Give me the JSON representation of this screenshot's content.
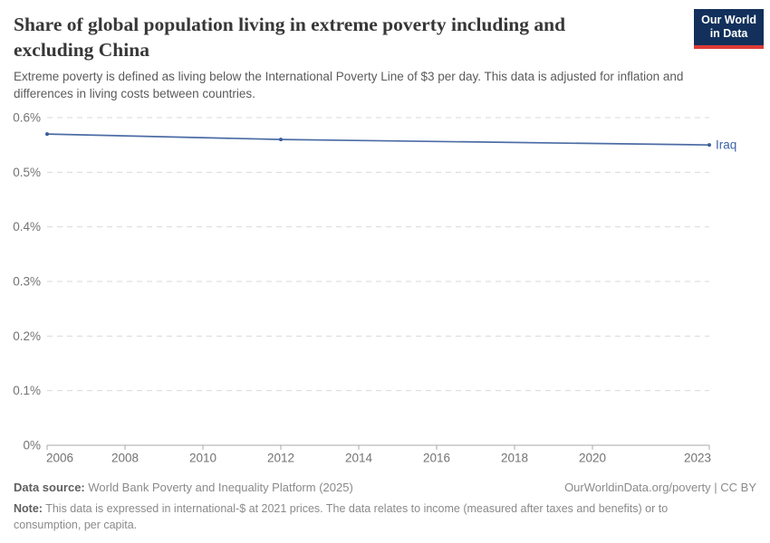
{
  "header": {
    "title": "Share of global population living in extreme poverty including and excluding China",
    "subtitle": "Extreme poverty is defined as living below the International Poverty Line of $3 per day. This data is adjusted for inflation and differences in living costs between countries."
  },
  "branding": {
    "logo_line1": "Our World",
    "logo_line2": "in Data",
    "logo_bg": "#12305b",
    "logo_accent": "#dc3b36"
  },
  "chart_data": {
    "type": "line",
    "title": "Share of global population living in extreme poverty including and excluding China",
    "x": [
      2006,
      2012,
      2023
    ],
    "series": [
      {
        "name": "Iraq",
        "values": [
          0.57,
          0.56,
          0.55
        ]
      }
    ],
    "unit": "%",
    "xlim": [
      2006,
      2023
    ],
    "ylim": [
      0,
      0.6
    ],
    "yticks": [
      0,
      0.1,
      0.2,
      0.3,
      0.4,
      0.5,
      0.6
    ],
    "ytick_labels": [
      "0%",
      "0.1%",
      "0.2%",
      "0.3%",
      "0.4%",
      "0.5%",
      "0.6%"
    ],
    "xticks": [
      2006,
      2008,
      2010,
      2012,
      2014,
      2016,
      2018,
      2020,
      2023
    ],
    "xtick_labels": [
      "2006",
      "2008",
      "2010",
      "2012",
      "2014",
      "2016",
      "2018",
      "2020",
      "2023"
    ],
    "grid": "horizontal-dashed",
    "legend_position": "end-of-line-label",
    "line_color": "#4C6CA5",
    "marker_color": "#3A5E9B",
    "label_color": "#3D63A8"
  },
  "colors": {
    "background": "#ffffff",
    "title_text": "#373737",
    "subtitle_text": "#5b5b5b",
    "axis_text": "#737373",
    "gridline": "#dadada",
    "axis_line": "#a8a8a8",
    "footer_text": "#8a8a8a",
    "footer_label": "#5f5f5f"
  },
  "footer": {
    "datasource_label": "Data source:",
    "datasource_text": " World Bank Poverty and Inequality Platform (2025)",
    "attribution": "OurWorldinData.org/poverty | CC BY",
    "note_label": "Note:",
    "note_text": " This data is expressed in international-$ at 2021 prices. The data relates to income (measured after taxes and benefits) or to consumption, per capita."
  }
}
